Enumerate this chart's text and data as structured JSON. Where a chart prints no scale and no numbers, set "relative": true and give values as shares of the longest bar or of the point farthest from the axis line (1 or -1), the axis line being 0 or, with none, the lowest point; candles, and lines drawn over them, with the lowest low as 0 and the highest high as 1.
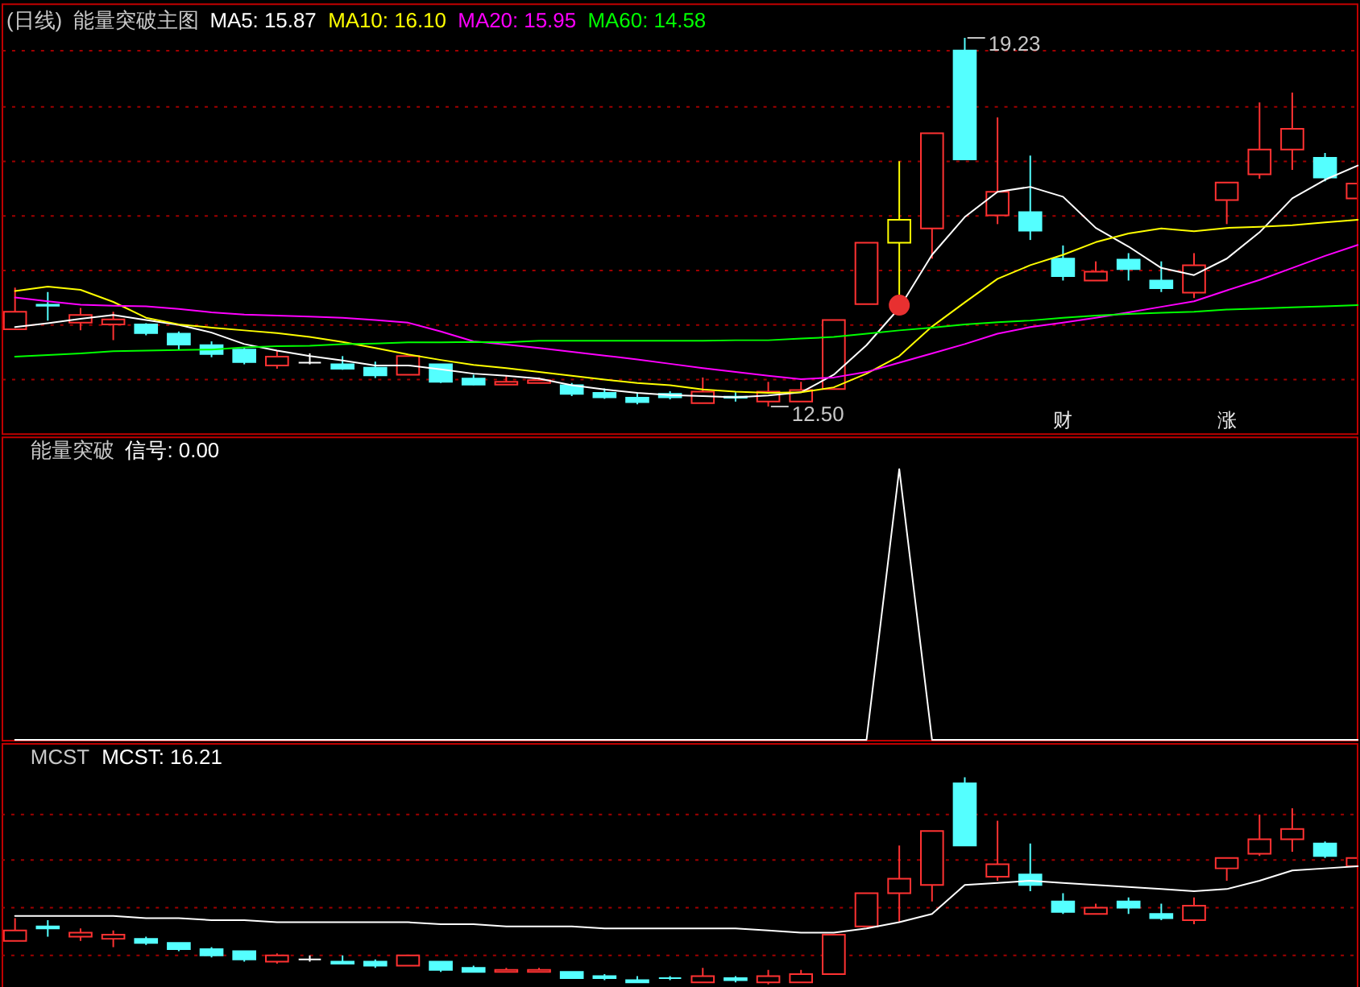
{
  "chart_data": [
    {
      "type": "candlestick",
      "title": "(日线)",
      "subtitle": "能量突破主图",
      "categories": [
        null,
        null,
        null,
        null,
        null,
        null,
        null,
        null,
        null,
        null,
        null,
        null,
        null,
        null,
        null,
        null,
        null,
        null,
        null,
        null,
        null,
        null,
        null,
        null,
        null,
        null,
        null,
        null,
        null,
        null,
        null,
        null,
        null,
        null,
        null,
        null,
        null,
        null,
        null,
        null,
        null,
        null
      ],
      "ohlc": [
        [
          13.91,
          14.67,
          13.91,
          14.23
        ],
        [
          14.36,
          14.59,
          14.07,
          14.34
        ],
        [
          14.03,
          14.3,
          13.89,
          14.17
        ],
        [
          14.0,
          14.23,
          13.71,
          14.09
        ],
        [
          14.0,
          14.02,
          13.8,
          13.84
        ],
        [
          13.83,
          13.87,
          13.54,
          13.63
        ],
        [
          13.62,
          13.69,
          13.4,
          13.46
        ],
        [
          13.54,
          13.57,
          13.27,
          13.31
        ],
        [
          13.25,
          13.52,
          13.19,
          13.41
        ],
        [
          13.3,
          13.47,
          13.27,
          13.3
        ],
        [
          13.27,
          13.42,
          13.17,
          13.19
        ],
        [
          13.21,
          13.32,
          13.02,
          13.07
        ],
        [
          13.08,
          13.42,
          13.08,
          13.42
        ],
        [
          13.27,
          13.27,
          12.93,
          12.95
        ],
        [
          13.01,
          13.08,
          12.89,
          12.9
        ],
        [
          12.9,
          13.06,
          12.9,
          12.95
        ],
        [
          12.93,
          13.03,
          12.93,
          12.98
        ],
        [
          12.89,
          12.93,
          12.69,
          12.73
        ],
        [
          12.75,
          12.83,
          12.64,
          12.67
        ],
        [
          12.66,
          12.76,
          12.54,
          12.58
        ],
        [
          12.73,
          12.78,
          12.63,
          12.67
        ],
        [
          12.56,
          13.03,
          12.56,
          12.77
        ],
        [
          12.68,
          12.76,
          12.59,
          12.66
        ],
        [
          12.59,
          12.95,
          12.5,
          12.77
        ],
        [
          12.59,
          12.95,
          12.59,
          12.8
        ],
        [
          12.82,
          14.08,
          12.82,
          14.08
        ],
        [
          14.37,
          15.49,
          14.37,
          15.49
        ],
        [
          15.49,
          16.98,
          14.54,
          15.91
        ],
        [
          15.75,
          17.49,
          15.2,
          17.49
        ],
        [
          19.0,
          19.23,
          17.01,
          17.01
        ],
        [
          15.99,
          17.78,
          15.83,
          16.42
        ],
        [
          16.05,
          17.08,
          15.54,
          15.71
        ],
        [
          15.2,
          15.44,
          14.8,
          14.88
        ],
        [
          14.8,
          15.15,
          14.8,
          14.96
        ],
        [
          15.18,
          15.3,
          14.8,
          15.01
        ],
        [
          14.8,
          15.15,
          14.59,
          14.66
        ],
        [
          14.58,
          15.3,
          14.48,
          15.08
        ],
        [
          16.27,
          16.59,
          15.83,
          16.59
        ],
        [
          16.74,
          18.05,
          16.66,
          17.19
        ],
        [
          17.19,
          18.23,
          16.82,
          17.57
        ],
        [
          17.04,
          17.13,
          16.61,
          16.68
        ],
        [
          16.3,
          16.57,
          16.3,
          16.57
        ]
      ],
      "colors": [
        "#ff3232",
        "#54ffff",
        "#ff3232",
        "#ff3232",
        "#54ffff",
        "#54ffff",
        "#54ffff",
        "#54ffff",
        "#ff3232",
        "#ffffff",
        "#54ffff",
        "#54ffff",
        "#ff3232",
        "#54ffff",
        "#54ffff",
        "#ff3232",
        "#ff3232",
        "#54ffff",
        "#54ffff",
        "#54ffff",
        "#54ffff",
        "#ff3232",
        "#54ffff",
        "#ff3232",
        "#ff3232",
        "#ff3232",
        "#ff3232",
        "#ffff00",
        "#ff3232",
        "#54ffff",
        "#ff3232",
        "#54ffff",
        "#54ffff",
        "#ff3232",
        "#54ffff",
        "#54ffff",
        "#ff3232",
        "#ff3232",
        "#ff3232",
        "#ff3232",
        "#54ffff",
        "#ff3232"
      ],
      "series": [
        {
          "name": "MA5: 15.87",
          "type": "line",
          "color": "#ffffff",
          "values": [
            13.95,
            14.02,
            14.1,
            14.17,
            14.08,
            13.99,
            13.85,
            13.64,
            13.52,
            13.42,
            13.34,
            13.25,
            13.25,
            13.18,
            13.1,
            13.06,
            13.01,
            12.89,
            12.81,
            12.75,
            12.71,
            12.69,
            12.67,
            12.7,
            12.76,
            13.08,
            13.62,
            14.3,
            15.27,
            15.96,
            16.42,
            16.51,
            16.33,
            15.76,
            15.42,
            15.03,
            14.9,
            15.2,
            15.68,
            16.3,
            16.64,
            16.9
          ]
        },
        {
          "name": "MA10: 16.10",
          "type": "line",
          "color": "#ffff00",
          "values": [
            14.61,
            14.69,
            14.63,
            14.41,
            14.12,
            14.0,
            13.94,
            13.89,
            13.84,
            13.77,
            13.68,
            13.57,
            13.45,
            13.35,
            13.26,
            13.2,
            13.13,
            13.06,
            12.99,
            12.93,
            12.89,
            12.81,
            12.77,
            12.75,
            12.76,
            12.85,
            13.1,
            13.42,
            13.96,
            14.4,
            14.83,
            15.08,
            15.27,
            15.5,
            15.66,
            15.75,
            15.7,
            15.76,
            15.78,
            15.81,
            15.86,
            15.91
          ]
        },
        {
          "name": "MA20: 15.95",
          "type": "line",
          "color": "#ff00ff",
          "values": [
            14.49,
            14.42,
            14.36,
            14.34,
            14.33,
            14.28,
            14.22,
            14.18,
            14.16,
            14.14,
            14.12,
            14.08,
            14.03,
            13.87,
            13.69,
            13.63,
            13.57,
            13.5,
            13.43,
            13.36,
            13.28,
            13.2,
            13.13,
            13.06,
            13.0,
            13.03,
            13.13,
            13.3,
            13.47,
            13.64,
            13.83,
            13.95,
            14.03,
            14.12,
            14.22,
            14.32,
            14.42,
            14.62,
            14.81,
            15.03,
            15.25,
            15.45
          ]
        },
        {
          "name": "MA60: 14.58",
          "type": "line",
          "color": "#00ff00",
          "values": [
            13.41,
            13.44,
            13.47,
            13.51,
            13.52,
            13.53,
            13.54,
            13.58,
            13.6,
            13.61,
            13.64,
            13.65,
            13.67,
            13.67,
            13.68,
            13.67,
            13.7,
            13.7,
            13.7,
            13.7,
            13.7,
            13.7,
            13.71,
            13.71,
            13.74,
            13.77,
            13.83,
            13.89,
            13.94,
            14.0,
            14.04,
            14.07,
            14.12,
            14.16,
            14.19,
            14.21,
            14.23,
            14.27,
            14.29,
            14.31,
            14.33,
            14.35
          ]
        },
        {
          "type": "scatter",
          "color": "#e83030",
          "marker": "circle",
          "values": [
            null,
            null,
            null,
            null,
            null,
            null,
            null,
            null,
            null,
            null,
            null,
            null,
            null,
            null,
            null,
            null,
            null,
            null,
            null,
            null,
            null,
            null,
            null,
            null,
            null,
            null,
            null,
            14.35,
            null,
            null,
            null,
            null,
            null,
            null,
            null,
            null,
            null,
            null,
            null,
            null,
            null,
            null
          ]
        }
      ],
      "ylim": [
        12.01,
        19.86
      ],
      "yticks": [
        {
          "value": 13,
          "label": null
        },
        {
          "value": 14,
          "label": null
        },
        {
          "value": 15,
          "label": null
        },
        {
          "value": 16,
          "label": null
        },
        {
          "value": 17,
          "label": null
        },
        {
          "value": 18,
          "label": null
        },
        {
          "value": 19,
          "label": null
        }
      ],
      "tick_labels": false,
      "grid": "y",
      "legend": "top left",
      "annotations": [
        "19.23",
        "12.50",
        "财",
        "涨"
      ]
    },
    {
      "type": "line",
      "title": "能量突破",
      "categories": [
        null,
        null,
        null,
        null,
        null,
        null,
        null,
        null,
        null,
        null,
        null,
        null,
        null,
        null,
        null,
        null,
        null,
        null,
        null,
        null,
        null,
        null,
        null,
        null,
        null,
        null,
        null,
        null,
        null,
        null,
        null,
        null,
        null,
        null,
        null,
        null,
        null,
        null,
        null,
        null,
        null,
        null
      ],
      "series": [
        {
          "name": "信号: 0.00",
          "color": "#ffffff",
          "values": [
            0,
            0,
            0,
            0,
            0,
            0,
            0,
            0,
            0,
            0,
            0,
            0,
            0,
            0,
            0,
            0,
            0,
            0,
            0,
            0,
            0,
            0,
            0,
            0,
            0,
            0,
            0,
            1,
            0,
            0,
            0,
            0,
            0,
            0,
            0,
            0,
            0,
            0,
            0,
            0,
            0,
            0
          ]
        }
      ],
      "relative": true,
      "tick_labels": false,
      "legend": "top left"
    },
    {
      "type": "candlestick",
      "title": "MCST",
      "categories": [
        null,
        null,
        null,
        null,
        null,
        null,
        null,
        null,
        null,
        null,
        null,
        null,
        null,
        null,
        null,
        null,
        null,
        null,
        null,
        null,
        null,
        null,
        null,
        null,
        null,
        null,
        null,
        null,
        null,
        null,
        null,
        null,
        null,
        null,
        null,
        null,
        null,
        null,
        null,
        null,
        null,
        null
      ],
      "ohlc": [
        [
          0.21,
          0.32,
          0.21,
          0.26
        ],
        [
          0.28,
          0.31,
          0.23,
          0.27
        ],
        [
          0.23,
          0.27,
          0.21,
          0.25
        ],
        [
          0.22,
          0.26,
          0.18,
          0.24
        ],
        [
          0.22,
          0.23,
          0.19,
          0.2
        ],
        [
          0.2,
          0.2,
          0.16,
          0.17
        ],
        [
          0.17,
          0.18,
          0.13,
          0.14
        ],
        [
          0.16,
          0.16,
          0.11,
          0.12
        ],
        [
          0.11,
          0.15,
          0.1,
          0.14
        ],
        [
          0.12,
          0.14,
          0.11,
          0.12
        ],
        [
          0.11,
          0.14,
          0.1,
          0.1
        ],
        [
          0.11,
          0.12,
          0.08,
          0.09
        ],
        [
          0.09,
          0.14,
          0.09,
          0.14
        ],
        [
          0.11,
          0.11,
          0.06,
          0.07
        ],
        [
          0.08,
          0.09,
          0.06,
          0.06
        ],
        [
          0.06,
          0.08,
          0.06,
          0.07
        ],
        [
          0.06,
          0.08,
          0.06,
          0.07
        ],
        [
          0.06,
          0.06,
          0.03,
          0.03
        ],
        [
          0.04,
          0.05,
          0.02,
          0.03
        ],
        [
          0.02,
          0.04,
          0.01,
          0.01
        ],
        [
          0.03,
          0.04,
          0.02,
          0.03
        ],
        [
          0.01,
          0.08,
          0.01,
          0.04
        ],
        [
          0.03,
          0.04,
          0.01,
          0.02
        ],
        [
          0.01,
          0.07,
          0.0,
          0.04
        ],
        [
          0.01,
          0.07,
          0.01,
          0.05
        ],
        [
          0.05,
          0.24,
          0.05,
          0.24
        ],
        [
          0.28,
          0.44,
          0.28,
          0.44
        ],
        [
          0.44,
          0.67,
          0.3,
          0.51
        ],
        [
          0.48,
          0.74,
          0.4,
          0.74
        ],
        [
          0.97,
          1.0,
          0.67,
          0.67
        ],
        [
          0.52,
          0.79,
          0.5,
          0.58
        ],
        [
          0.53,
          0.68,
          0.45,
          0.48
        ],
        [
          0.4,
          0.44,
          0.34,
          0.35
        ],
        [
          0.34,
          0.39,
          0.34,
          0.37
        ],
        [
          0.4,
          0.42,
          0.34,
          0.37
        ],
        [
          0.34,
          0.39,
          0.31,
          0.32
        ],
        [
          0.31,
          0.42,
          0.29,
          0.38
        ],
        [
          0.56,
          0.61,
          0.5,
          0.61
        ],
        [
          0.63,
          0.82,
          0.62,
          0.7
        ],
        [
          0.7,
          0.85,
          0.64,
          0.75
        ],
        [
          0.68,
          0.69,
          0.61,
          0.62
        ],
        [
          0.57,
          0.61,
          0.57,
          0.61
        ]
      ],
      "colors": [
        "#ff3232",
        "#54ffff",
        "#ff3232",
        "#ff3232",
        "#54ffff",
        "#54ffff",
        "#54ffff",
        "#54ffff",
        "#ff3232",
        "#ffffff",
        "#54ffff",
        "#54ffff",
        "#ff3232",
        "#54ffff",
        "#54ffff",
        "#ff3232",
        "#ff3232",
        "#54ffff",
        "#54ffff",
        "#54ffff",
        "#54ffff",
        "#ff3232",
        "#54ffff",
        "#ff3232",
        "#ff3232",
        "#ff3232",
        "#ff3232",
        "#ff3232",
        "#ff3232",
        "#54ffff",
        "#ff3232",
        "#54ffff",
        "#54ffff",
        "#ff3232",
        "#54ffff",
        "#54ffff",
        "#ff3232",
        "#ff3232",
        "#ff3232",
        "#ff3232",
        "#54ffff",
        "#ff3232"
      ],
      "series": [
        {
          "name": "MCST: 16.21",
          "type": "line",
          "color": "#ffffff",
          "values": [
            0.33,
            0.33,
            0.33,
            0.33,
            0.32,
            0.32,
            0.31,
            0.31,
            0.3,
            0.3,
            0.3,
            0.3,
            0.3,
            0.29,
            0.29,
            0.28,
            0.28,
            0.28,
            0.27,
            0.27,
            0.27,
            0.27,
            0.27,
            0.26,
            0.25,
            0.25,
            0.27,
            0.3,
            0.34,
            0.48,
            0.49,
            0.5,
            0.49,
            0.48,
            0.47,
            0.46,
            0.45,
            0.46,
            0.5,
            0.55,
            0.56,
            0.57
          ]
        }
      ],
      "ref_lines": [
        {
          "axis": "y",
          "value": 0.14,
          "color": "#a00000",
          "line_style": "dotted"
        },
        {
          "axis": "y",
          "value": 0.37,
          "color": "#a00000",
          "line_style": "dotted"
        },
        {
          "axis": "y",
          "value": 0.6,
          "color": "#a00000",
          "line_style": "dotted"
        },
        {
          "axis": "y",
          "value": 0.82,
          "color": "#a00000",
          "line_style": "dotted"
        }
      ],
      "relative": true,
      "tick_labels": false,
      "legend": "top left"
    }
  ]
}
